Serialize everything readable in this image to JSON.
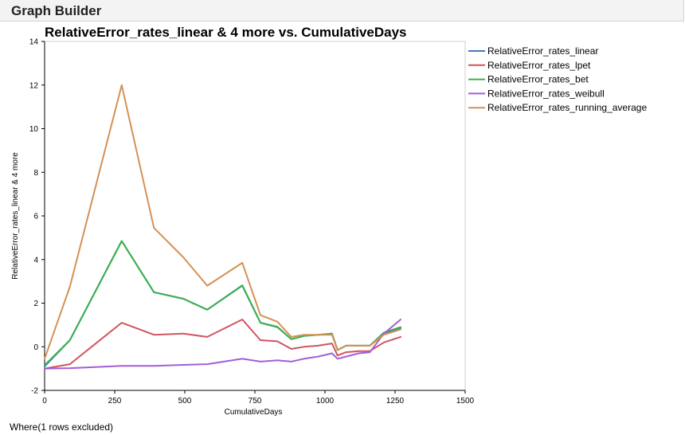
{
  "app": {
    "title": "Graph Builder",
    "footer": "Where(1 rows excluded)"
  },
  "chart_data": {
    "type": "line",
    "title": "RelativeError_rates_linear & 4 more vs. CumulativeDays",
    "xlabel": "CumulativeDays",
    "ylabel": "RelativeError_rates_linear & 4 more",
    "xlim": [
      0,
      1500
    ],
    "ylim": [
      -2,
      14
    ],
    "xticks": [
      0,
      250,
      500,
      750,
      1000,
      1250,
      1500
    ],
    "yticks": [
      -2,
      0,
      2,
      4,
      6,
      8,
      10,
      12,
      14
    ],
    "grid": false,
    "legend": "right",
    "x": [
      0,
      90,
      275,
      390,
      495,
      580,
      705,
      770,
      830,
      880,
      925,
      975,
      1025,
      1045,
      1075,
      1120,
      1160,
      1210,
      1270
    ],
    "series": [
      {
        "name": "RelativeError_rates_linear",
        "color": "#3d7bc0",
        "values": [
          -0.9,
          0.3,
          4.85,
          2.5,
          2.2,
          1.7,
          2.8,
          1.1,
          0.9,
          0.35,
          0.5,
          0.55,
          0.6,
          -0.15,
          0.05,
          0.05,
          0.05,
          0.6,
          0.85
        ]
      },
      {
        "name": "RelativeError_rates_lpet",
        "color": "#d1545f",
        "values": [
          -1.0,
          -0.8,
          1.1,
          0.55,
          0.6,
          0.45,
          1.25,
          0.3,
          0.25,
          -0.1,
          0.0,
          0.05,
          0.15,
          -0.4,
          -0.25,
          -0.2,
          -0.2,
          0.2,
          0.45
        ]
      },
      {
        "name": "RelativeError_rates_bet",
        "color": "#3ab04b",
        "values": [
          -0.85,
          0.3,
          4.85,
          2.5,
          2.2,
          1.7,
          2.82,
          1.1,
          0.92,
          0.35,
          0.5,
          0.55,
          0.6,
          -0.15,
          0.05,
          0.05,
          0.05,
          0.65,
          0.9
        ]
      },
      {
        "name": "RelativeError_rates_weibull",
        "color": "#a25fd9",
        "values": [
          -1.0,
          -0.98,
          -0.88,
          -0.88,
          -0.83,
          -0.8,
          -0.55,
          -0.68,
          -0.62,
          -0.68,
          -0.55,
          -0.45,
          -0.3,
          -0.55,
          -0.45,
          -0.3,
          -0.25,
          0.6,
          1.25
        ]
      },
      {
        "name": "RelativeError_rates_running_average",
        "color": "#d49155",
        "values": [
          -0.55,
          2.75,
          12.0,
          5.45,
          4.1,
          2.8,
          3.85,
          1.45,
          1.15,
          0.45,
          0.55,
          0.55,
          0.55,
          -0.15,
          0.05,
          0.05,
          0.05,
          0.55,
          0.8
        ]
      }
    ]
  }
}
